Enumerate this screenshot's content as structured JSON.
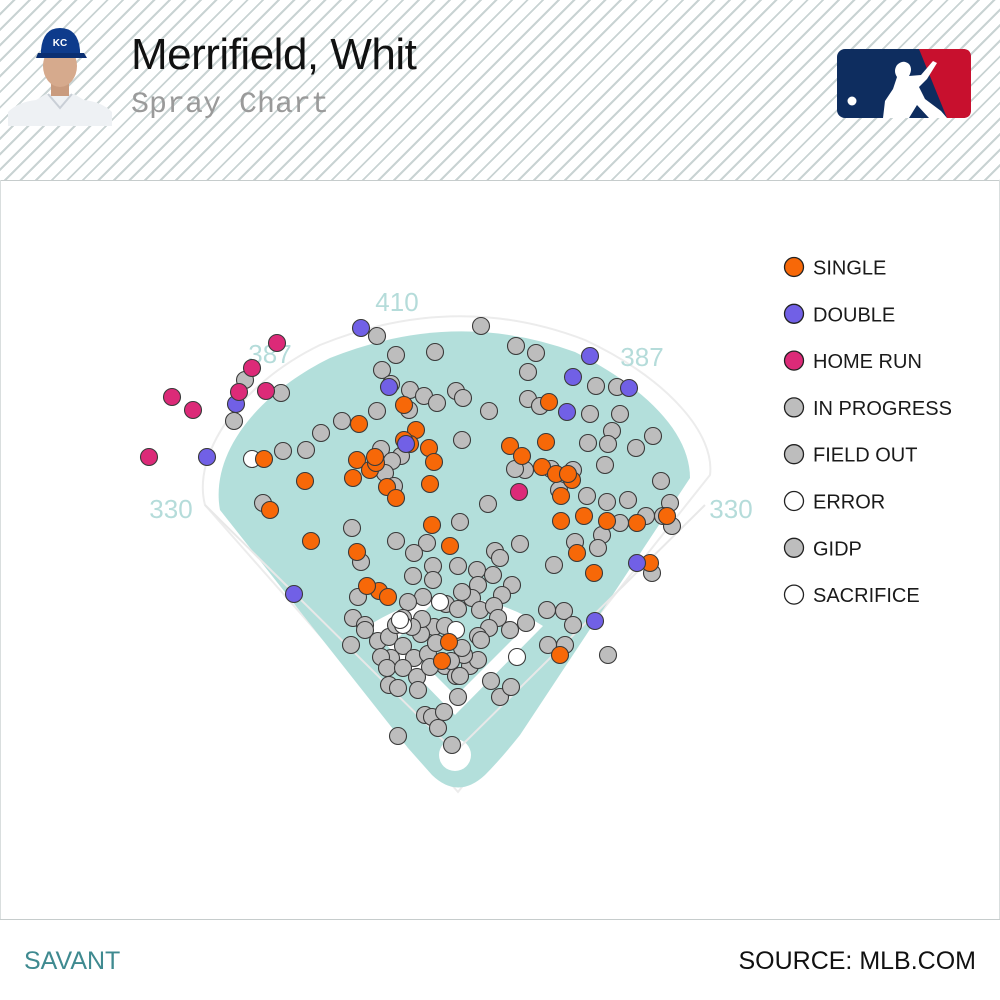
{
  "header": {
    "player_name": "Merrifield, Whit",
    "subtitle": "Spray Chart"
  },
  "footer": {
    "left": "SAVANT",
    "right": "SOURCE: MLB.COM"
  },
  "colors": {
    "field": "#b3dfdb",
    "single": "#f76808",
    "double": "#7160e6",
    "home_run": "#dc2a78",
    "gray": "#bdbdbd",
    "white": "#ffffff",
    "distance_label": "#b5dcda",
    "brand_blue": "#0e2d5f",
    "brand_red": "#c8102e"
  },
  "chart_data": {
    "type": "scatter",
    "title": "Spray Chart",
    "distance_markers": [
      "410",
      "387",
      "387",
      "330",
      "330"
    ],
    "legend": [
      {
        "label": "SINGLE",
        "color": "#f76808"
      },
      {
        "label": "DOUBLE",
        "color": "#7160e6"
      },
      {
        "label": "HOME RUN",
        "color": "#dc2a78"
      },
      {
        "label": "IN PROGRESS",
        "color": "#bdbdbd"
      },
      {
        "label": "FIELD OUT",
        "color": "#bdbdbd"
      },
      {
        "label": "ERROR",
        "color": "#ffffff"
      },
      {
        "label": "GIDP",
        "color": "#bdbdbd"
      },
      {
        "label": "SACRIFICE",
        "color": "#ffffff"
      }
    ],
    "series": [
      {
        "name": "SINGLE",
        "color": "#f76808",
        "points": [
          [
            264,
            459
          ],
          [
            404,
            405
          ],
          [
            416,
            430
          ],
          [
            429,
            448
          ],
          [
            410,
            444
          ],
          [
            359,
            424
          ],
          [
            357,
            460
          ],
          [
            370,
            470
          ],
          [
            376,
            463
          ],
          [
            387,
            487
          ],
          [
            396,
            498
          ],
          [
            404,
            440
          ],
          [
            434,
            462
          ],
          [
            430,
            484
          ],
          [
            353,
            478
          ],
          [
            305,
            481
          ],
          [
            270,
            510
          ],
          [
            311,
            541
          ],
          [
            357,
            552
          ],
          [
            450,
            546
          ],
          [
            432,
            525
          ],
          [
            510,
            446
          ],
          [
            522,
            456
          ],
          [
            542,
            467
          ],
          [
            556,
            474
          ],
          [
            572,
            480
          ],
          [
            561,
            496
          ],
          [
            568,
            474
          ],
          [
            584,
            516
          ],
          [
            561,
            521
          ],
          [
            607,
            521
          ],
          [
            637,
            523
          ],
          [
            667,
            516
          ],
          [
            577,
            553
          ],
          [
            594,
            573
          ],
          [
            549,
            402
          ],
          [
            546,
            442
          ],
          [
            379,
            591
          ],
          [
            388,
            597
          ],
          [
            367,
            586
          ],
          [
            449,
            642
          ],
          [
            442,
            661
          ],
          [
            560,
            655
          ],
          [
            650,
            563
          ],
          [
            375,
            457
          ]
        ]
      },
      {
        "name": "DOUBLE",
        "color": "#7160e6",
        "points": [
          [
            361,
            328
          ],
          [
            236,
            404
          ],
          [
            207,
            457
          ],
          [
            389,
            387
          ],
          [
            406,
            444
          ],
          [
            573,
            377
          ],
          [
            567,
            412
          ],
          [
            590,
            356
          ],
          [
            629,
            388
          ],
          [
            637,
            563
          ],
          [
            595,
            621
          ],
          [
            294,
            594
          ]
        ]
      },
      {
        "name": "HOME RUN",
        "color": "#dc2a78",
        "points": [
          [
            277,
            343
          ],
          [
            252,
            368
          ],
          [
            239,
            392
          ],
          [
            172,
            397
          ],
          [
            193,
            410
          ],
          [
            149,
            457
          ],
          [
            266,
            391
          ],
          [
            519,
            492
          ]
        ]
      },
      {
        "name": "FIELD OUT",
        "color": "#bdbdbd",
        "points": [
          [
            481,
            326
          ],
          [
            377,
            336
          ],
          [
            396,
            355
          ],
          [
            435,
            352
          ],
          [
            516,
            346
          ],
          [
            536,
            353
          ],
          [
            528,
            372
          ],
          [
            382,
            370
          ],
          [
            391,
            384
          ],
          [
            410,
            390
          ],
          [
            424,
            396
          ],
          [
            437,
            403
          ],
          [
            456,
            391
          ],
          [
            463,
            398
          ],
          [
            409,
            410
          ],
          [
            377,
            411
          ],
          [
            342,
            421
          ],
          [
            489,
            411
          ],
          [
            528,
            399
          ],
          [
            540,
            406
          ],
          [
            590,
            414
          ],
          [
            596,
            386
          ],
          [
            617,
            387
          ],
          [
            620,
            414
          ],
          [
            612,
            431
          ],
          [
            608,
            444
          ],
          [
            605,
            465
          ],
          [
            636,
            448
          ],
          [
            653,
            436
          ],
          [
            661,
            481
          ],
          [
            670,
            503
          ],
          [
            672,
            526
          ],
          [
            663,
            516
          ],
          [
            646,
            516
          ],
          [
            628,
            500
          ],
          [
            607,
            502
          ],
          [
            620,
            523
          ],
          [
            602,
            535
          ],
          [
            598,
            548
          ],
          [
            587,
            496
          ],
          [
            559,
            490
          ],
          [
            551,
            469
          ],
          [
            573,
            470
          ],
          [
            525,
            470
          ],
          [
            515,
            469
          ],
          [
            588,
            443
          ],
          [
            462,
            440
          ],
          [
            321,
            433
          ],
          [
            306,
            450
          ],
          [
            283,
            451
          ],
          [
            263,
            503
          ],
          [
            245,
            380
          ],
          [
            234,
            421
          ],
          [
            281,
            393
          ],
          [
            381,
            449
          ],
          [
            401,
            456
          ],
          [
            392,
            461
          ],
          [
            385,
            473
          ],
          [
            394,
            486
          ],
          [
            352,
            528
          ],
          [
            460,
            522
          ],
          [
            427,
            543
          ],
          [
            414,
            553
          ],
          [
            433,
            566
          ],
          [
            413,
            576
          ],
          [
            433,
            580
          ],
          [
            458,
            566
          ],
          [
            477,
            570
          ],
          [
            495,
            551
          ],
          [
            500,
            558
          ],
          [
            520,
            544
          ],
          [
            493,
            575
          ],
          [
            512,
            585
          ],
          [
            478,
            585
          ],
          [
            502,
            595
          ],
          [
            472,
            598
          ],
          [
            462,
            592
          ],
          [
            423,
            597
          ],
          [
            408,
            602
          ],
          [
            446,
            604
          ],
          [
            458,
            609
          ],
          [
            434,
            627
          ],
          [
            480,
            610
          ],
          [
            494,
            606
          ],
          [
            498,
            618
          ],
          [
            489,
            628
          ],
          [
            510,
            630
          ],
          [
            526,
            623
          ],
          [
            547,
            610
          ],
          [
            564,
            611
          ],
          [
            548,
            645
          ],
          [
            565,
            645
          ],
          [
            573,
            625
          ],
          [
            554,
            565
          ],
          [
            575,
            542
          ],
          [
            608,
            655
          ],
          [
            652,
            573
          ],
          [
            488,
            504
          ],
          [
            396,
            541
          ],
          [
            361,
            562
          ],
          [
            358,
            597
          ],
          [
            353,
            618
          ],
          [
            365,
            625
          ],
          [
            365,
            630
          ],
          [
            351,
            645
          ],
          [
            378,
            641
          ],
          [
            389,
            637
          ],
          [
            403,
            646
          ],
          [
            414,
            658
          ],
          [
            391,
            658
          ],
          [
            381,
            657
          ],
          [
            387,
            668
          ],
          [
            403,
            668
          ],
          [
            417,
            677
          ],
          [
            389,
            685
          ],
          [
            425,
            715
          ],
          [
            432,
            717
          ],
          [
            444,
            712
          ],
          [
            458,
            697
          ],
          [
            470,
            666
          ],
          [
            478,
            660
          ],
          [
            445,
            666
          ],
          [
            464,
            655
          ],
          [
            456,
            676
          ],
          [
            462,
            648
          ],
          [
            478,
            636
          ],
          [
            481,
            640
          ],
          [
            491,
            681
          ],
          [
            500,
            697
          ],
          [
            511,
            687
          ],
          [
            398,
            736
          ],
          [
            452,
            745
          ],
          [
            438,
            728
          ],
          [
            460,
            676
          ],
          [
            451,
            661
          ],
          [
            428,
            654
          ],
          [
            436,
            643
          ],
          [
            421,
            634
          ],
          [
            445,
            626
          ],
          [
            422,
            619
          ],
          [
            412,
            627
          ],
          [
            396,
            625
          ],
          [
            398,
            688
          ],
          [
            418,
            690
          ],
          [
            430,
            667
          ],
          [
            403,
            618
          ]
        ]
      },
      {
        "name": "ERROR",
        "color": "#ffffff",
        "points": [
          [
            252,
            459
          ],
          [
            440,
            602
          ],
          [
            403,
            625
          ],
          [
            400,
            620
          ],
          [
            517,
            657
          ],
          [
            456,
            630
          ]
        ]
      }
    ]
  }
}
